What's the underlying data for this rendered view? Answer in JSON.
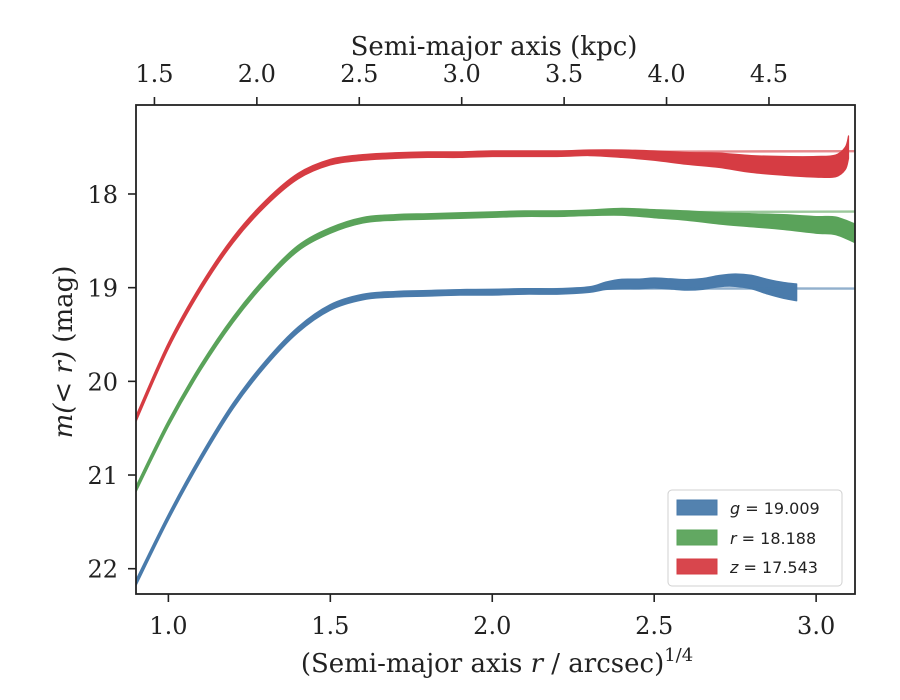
{
  "chart_data": {
    "type": "line",
    "xlabel": "(Semi-major axis r / arcsec)",
    "xlabel_parts": {
      "pre": "(Semi-major axis ",
      "var": "r",
      "post": " / arcsec)",
      "sup": "1/4"
    },
    "top_xlabel": "Semi-major axis (kpc)",
    "ylabel": "m(<r) (mag)",
    "ylabel_parts": {
      "italic": "m(< r)",
      "rest": " (mag)"
    },
    "xlim": [
      0.9,
      3.12
    ],
    "ylim": [
      22.27,
      17.05
    ],
    "y_inverted": true,
    "top_xlim": [
      1.41,
      4.92
    ],
    "x_ticks": [
      "1.0",
      "1.5",
      "2.0",
      "2.5",
      "3.0"
    ],
    "y_ticks": [
      "18",
      "19",
      "20",
      "21",
      "22"
    ],
    "top_ticks": [
      "1.5",
      "2.0",
      "2.5",
      "3.0",
      "3.5",
      "4.0",
      "4.5"
    ],
    "legend_position": "lower-right",
    "grid": false,
    "series": [
      {
        "name": "g = 19.009",
        "band": "g",
        "total": "19.009",
        "color": "#4a7bab",
        "model": [
          [
            0.9,
            22.15
          ],
          [
            1.0,
            21.45
          ],
          [
            1.1,
            20.82
          ],
          [
            1.2,
            20.27
          ],
          [
            1.3,
            19.82
          ],
          [
            1.4,
            19.46
          ],
          [
            1.5,
            19.22
          ],
          [
            1.6,
            19.11
          ],
          [
            1.7,
            19.06
          ],
          [
            1.8,
            19.04
          ],
          [
            2.0,
            19.02
          ],
          [
            2.5,
            19.01
          ],
          [
            3.12,
            19.009
          ]
        ],
        "data": [
          [
            0.9,
            22.15
          ],
          [
            1.0,
            21.45
          ],
          [
            1.1,
            20.82
          ],
          [
            1.2,
            20.26
          ],
          [
            1.3,
            19.81
          ],
          [
            1.4,
            19.45
          ],
          [
            1.5,
            19.21
          ],
          [
            1.6,
            19.1
          ],
          [
            1.7,
            19.07
          ],
          [
            1.8,
            19.06
          ],
          [
            1.9,
            19.05
          ],
          [
            2.0,
            19.05
          ],
          [
            2.1,
            19.04
          ],
          [
            2.2,
            19.04
          ],
          [
            2.3,
            19.02
          ],
          [
            2.35,
            18.98
          ],
          [
            2.4,
            18.96
          ],
          [
            2.45,
            18.96
          ],
          [
            2.5,
            18.95
          ],
          [
            2.55,
            18.96
          ],
          [
            2.6,
            18.97
          ],
          [
            2.65,
            18.96
          ],
          [
            2.7,
            18.93
          ],
          [
            2.75,
            18.92
          ],
          [
            2.8,
            18.94
          ],
          [
            2.85,
            18.99
          ],
          [
            2.9,
            19.03
          ],
          [
            2.94,
            19.05
          ]
        ],
        "width": [
          [
            0.9,
            0.03
          ],
          [
            2.3,
            0.03
          ],
          [
            2.4,
            0.05
          ],
          [
            2.7,
            0.06
          ],
          [
            2.94,
            0.09
          ]
        ]
      },
      {
        "name": "r = 18.188",
        "band": "r",
        "total": "18.188",
        "color": "#5aa35a",
        "model": [
          [
            0.9,
            21.15
          ],
          [
            1.0,
            20.45
          ],
          [
            1.1,
            19.85
          ],
          [
            1.2,
            19.35
          ],
          [
            1.3,
            18.93
          ],
          [
            1.4,
            18.6
          ],
          [
            1.5,
            18.41
          ],
          [
            1.6,
            18.3
          ],
          [
            1.7,
            18.25
          ],
          [
            1.8,
            18.23
          ],
          [
            2.0,
            18.21
          ],
          [
            2.5,
            18.195
          ],
          [
            3.12,
            18.188
          ]
        ],
        "data": [
          [
            0.9,
            21.15
          ],
          [
            1.0,
            20.45
          ],
          [
            1.1,
            19.85
          ],
          [
            1.2,
            19.34
          ],
          [
            1.3,
            18.92
          ],
          [
            1.4,
            18.58
          ],
          [
            1.5,
            18.39
          ],
          [
            1.6,
            18.28
          ],
          [
            1.7,
            18.25
          ],
          [
            1.8,
            18.24
          ],
          [
            1.9,
            18.23
          ],
          [
            2.0,
            18.22
          ],
          [
            2.1,
            18.21
          ],
          [
            2.2,
            18.21
          ],
          [
            2.3,
            18.2
          ],
          [
            2.4,
            18.19
          ],
          [
            2.5,
            18.21
          ],
          [
            2.6,
            18.23
          ],
          [
            2.7,
            18.26
          ],
          [
            2.8,
            18.28
          ],
          [
            2.9,
            18.3
          ],
          [
            3.0,
            18.33
          ],
          [
            3.06,
            18.34
          ],
          [
            3.12,
            18.42
          ]
        ],
        "width": [
          [
            0.9,
            0.03
          ],
          [
            2.3,
            0.03
          ],
          [
            2.6,
            0.05
          ],
          [
            2.9,
            0.08
          ],
          [
            3.12,
            0.1
          ]
        ]
      },
      {
        "name": "z = 17.543",
        "band": "z",
        "total": "17.543",
        "color": "#d63c43",
        "model": [
          [
            0.9,
            20.4
          ],
          [
            1.0,
            19.62
          ],
          [
            1.1,
            19.0
          ],
          [
            1.2,
            18.5
          ],
          [
            1.3,
            18.12
          ],
          [
            1.4,
            17.83
          ],
          [
            1.5,
            17.67
          ],
          [
            1.6,
            17.6
          ],
          [
            1.7,
            17.58
          ],
          [
            1.8,
            17.565
          ],
          [
            2.0,
            17.555
          ],
          [
            2.5,
            17.548
          ],
          [
            3.12,
            17.543
          ]
        ],
        "data": [
          [
            0.9,
            20.4
          ],
          [
            1.0,
            19.62
          ],
          [
            1.1,
            19.0
          ],
          [
            1.2,
            18.49
          ],
          [
            1.3,
            18.1
          ],
          [
            1.4,
            17.81
          ],
          [
            1.5,
            17.66
          ],
          [
            1.6,
            17.61
          ],
          [
            1.7,
            17.59
          ],
          [
            1.8,
            17.58
          ],
          [
            1.9,
            17.58
          ],
          [
            2.0,
            17.57
          ],
          [
            2.2,
            17.57
          ],
          [
            2.3,
            17.56
          ],
          [
            2.4,
            17.57
          ],
          [
            2.5,
            17.59
          ],
          [
            2.6,
            17.62
          ],
          [
            2.7,
            17.64
          ],
          [
            2.8,
            17.68
          ],
          [
            2.9,
            17.7
          ],
          [
            3.0,
            17.71
          ],
          [
            3.06,
            17.7
          ],
          [
            3.09,
            17.62
          ],
          [
            3.1,
            17.5
          ]
        ],
        "width": [
          [
            0.9,
            0.03
          ],
          [
            2.3,
            0.03
          ],
          [
            2.5,
            0.05
          ],
          [
            2.8,
            0.09
          ],
          [
            3.1,
            0.12
          ]
        ]
      }
    ]
  }
}
